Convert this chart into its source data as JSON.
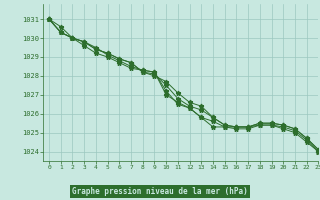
{
  "xlabel": "Graphe pression niveau de la mer (hPa)",
  "xlim": [
    -0.5,
    23
  ],
  "ylim": [
    1023.5,
    1031.8
  ],
  "yticks": [
    1024,
    1025,
    1026,
    1027,
    1028,
    1029,
    1030,
    1031
  ],
  "xticks": [
    0,
    1,
    2,
    3,
    4,
    5,
    6,
    7,
    8,
    9,
    10,
    11,
    12,
    13,
    14,
    15,
    16,
    17,
    18,
    19,
    20,
    21,
    22,
    23
  ],
  "bg_color": "#c8e8e0",
  "line_color": "#2d6e2d",
  "grid_color": "#9cc8c0",
  "xlabel_bg": "#2d6e2d",
  "xlabel_fg": "#c8e8e0",
  "series": [
    [
      1031.0,
      1030.6,
      1030.0,
      1029.8,
      1029.5,
      1029.1,
      1028.8,
      1028.5,
      1028.3,
      1028.2,
      1027.0,
      1026.6,
      1026.3,
      1025.8,
      1025.3,
      1025.3,
      1025.3,
      1025.3,
      1025.4,
      1025.4,
      1025.3,
      1025.1,
      1024.6,
      1024.0
    ],
    [
      1031.0,
      1030.3,
      1030.0,
      1029.6,
      1029.2,
      1029.0,
      1028.7,
      1028.4,
      1028.3,
      1028.2,
      1027.2,
      1026.5,
      1026.3,
      1025.8,
      1025.6,
      1025.3,
      1025.2,
      1025.2,
      1025.4,
      1025.4,
      1025.2,
      1025.0,
      1024.5,
      1024.0
    ],
    [
      1031.0,
      1030.3,
      1030.0,
      1029.8,
      1029.4,
      1029.2,
      1028.9,
      1028.7,
      1028.2,
      1028.1,
      1027.5,
      1026.8,
      1026.4,
      1026.2,
      1025.8,
      1025.4,
      1025.3,
      1025.3,
      1025.5,
      1025.5,
      1025.4,
      1025.2,
      1024.7,
      1024.1
    ],
    [
      1031.0,
      1030.3,
      1030.0,
      1029.8,
      1029.4,
      1029.2,
      1028.9,
      1028.7,
      1028.2,
      1028.0,
      1027.7,
      1027.1,
      1026.6,
      1026.4,
      1025.8,
      1025.4,
      1025.3,
      1025.3,
      1025.5,
      1025.5,
      1025.4,
      1025.2,
      1024.7,
      1024.1
    ]
  ]
}
